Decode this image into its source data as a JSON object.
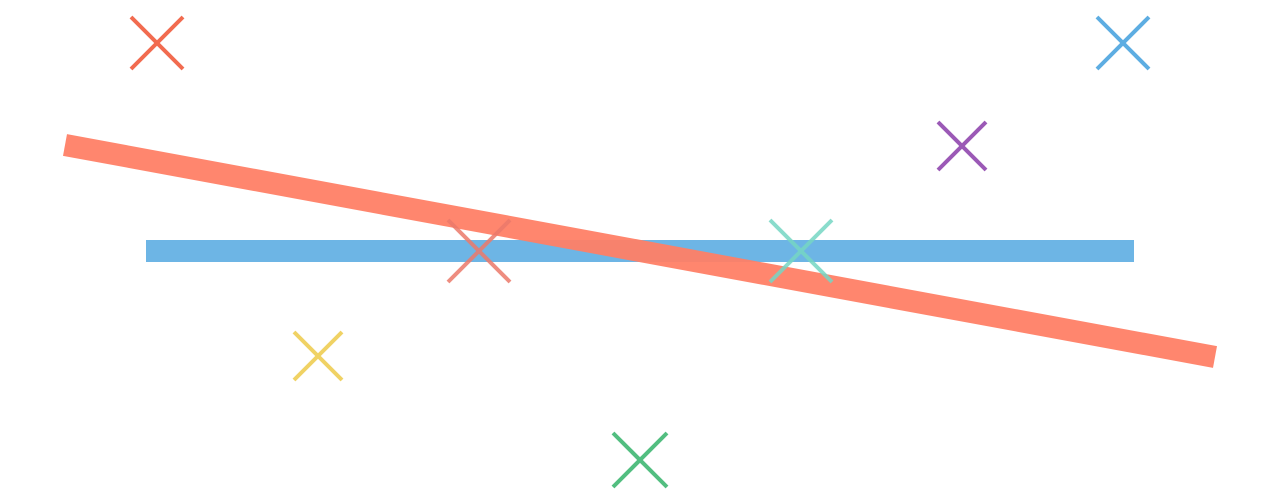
{
  "palette": {
    "red": "#F26B4F",
    "red_line": "#FF7F66",
    "blue": "#5DADE2",
    "purple": "#9B59B6",
    "yellow": "#F0D264",
    "green": "#52BE80",
    "teal": "#76D7C4",
    "salmon": "#EC7A6B"
  },
  "shapes": {
    "lines": [
      {
        "name": "wide-red-line",
        "color_key": "red_line",
        "opacity": 0.95
      },
      {
        "name": "wide-blue-line",
        "color_key": "blue",
        "opacity": 0.9
      }
    ],
    "crosses": [
      {
        "name": "cross-red",
        "color_key": "red"
      },
      {
        "name": "cross-blue",
        "color_key": "blue"
      },
      {
        "name": "cross-purple",
        "color_key": "purple"
      },
      {
        "name": "cross-salmon",
        "color_key": "salmon"
      },
      {
        "name": "cross-teal",
        "color_key": "teal"
      },
      {
        "name": "cross-yellow",
        "color_key": "yellow"
      },
      {
        "name": "cross-green",
        "color_key": "green"
      }
    ]
  }
}
